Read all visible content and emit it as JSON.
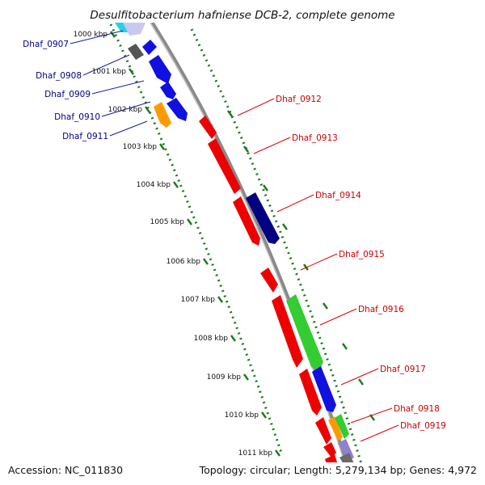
{
  "title": "Desulfitobacterium hafniense DCB-2, complete genome",
  "footer": {
    "accession": "Accession: NC_011830",
    "summary": "Topology: circular; Length: 5,279,134 bp; Genes: 4,972"
  },
  "colors": {
    "backbone": "#8a8a8a",
    "tick": "#1a7a1a",
    "left_label": "#00008b",
    "right_label": "#cc0000",
    "left_leader": "#1a1aa6",
    "right_leader": "#dd0000"
  },
  "ticks": [
    {
      "label": "1000 kbp"
    },
    {
      "label": "1001 kbp"
    },
    {
      "label": "1002 kbp"
    },
    {
      "label": "1003 kbp"
    },
    {
      "label": "1004 kbp"
    },
    {
      "label": "1005 kbp"
    },
    {
      "label": "1006 kbp"
    },
    {
      "label": "1007 kbp"
    },
    {
      "label": "1008 kbp"
    },
    {
      "label": "1009 kbp"
    },
    {
      "label": "1010 kbp"
    },
    {
      "label": "1011 kbp"
    }
  ],
  "genes_left": [
    {
      "label": "Dhaf_0907"
    },
    {
      "label": "Dhaf_0908"
    },
    {
      "label": "Dhaf_0909"
    },
    {
      "label": "Dhaf_0910"
    },
    {
      "label": "Dhaf_0911"
    }
  ],
  "genes_right": [
    {
      "label": "Dhaf_0912"
    },
    {
      "label": "Dhaf_0913"
    },
    {
      "label": "Dhaf_0914"
    },
    {
      "label": "Dhaf_0915"
    },
    {
      "label": "Dhaf_0916"
    },
    {
      "label": "Dhaf_0917"
    },
    {
      "label": "Dhaf_0918"
    },
    {
      "label": "Dhaf_0919"
    }
  ]
}
